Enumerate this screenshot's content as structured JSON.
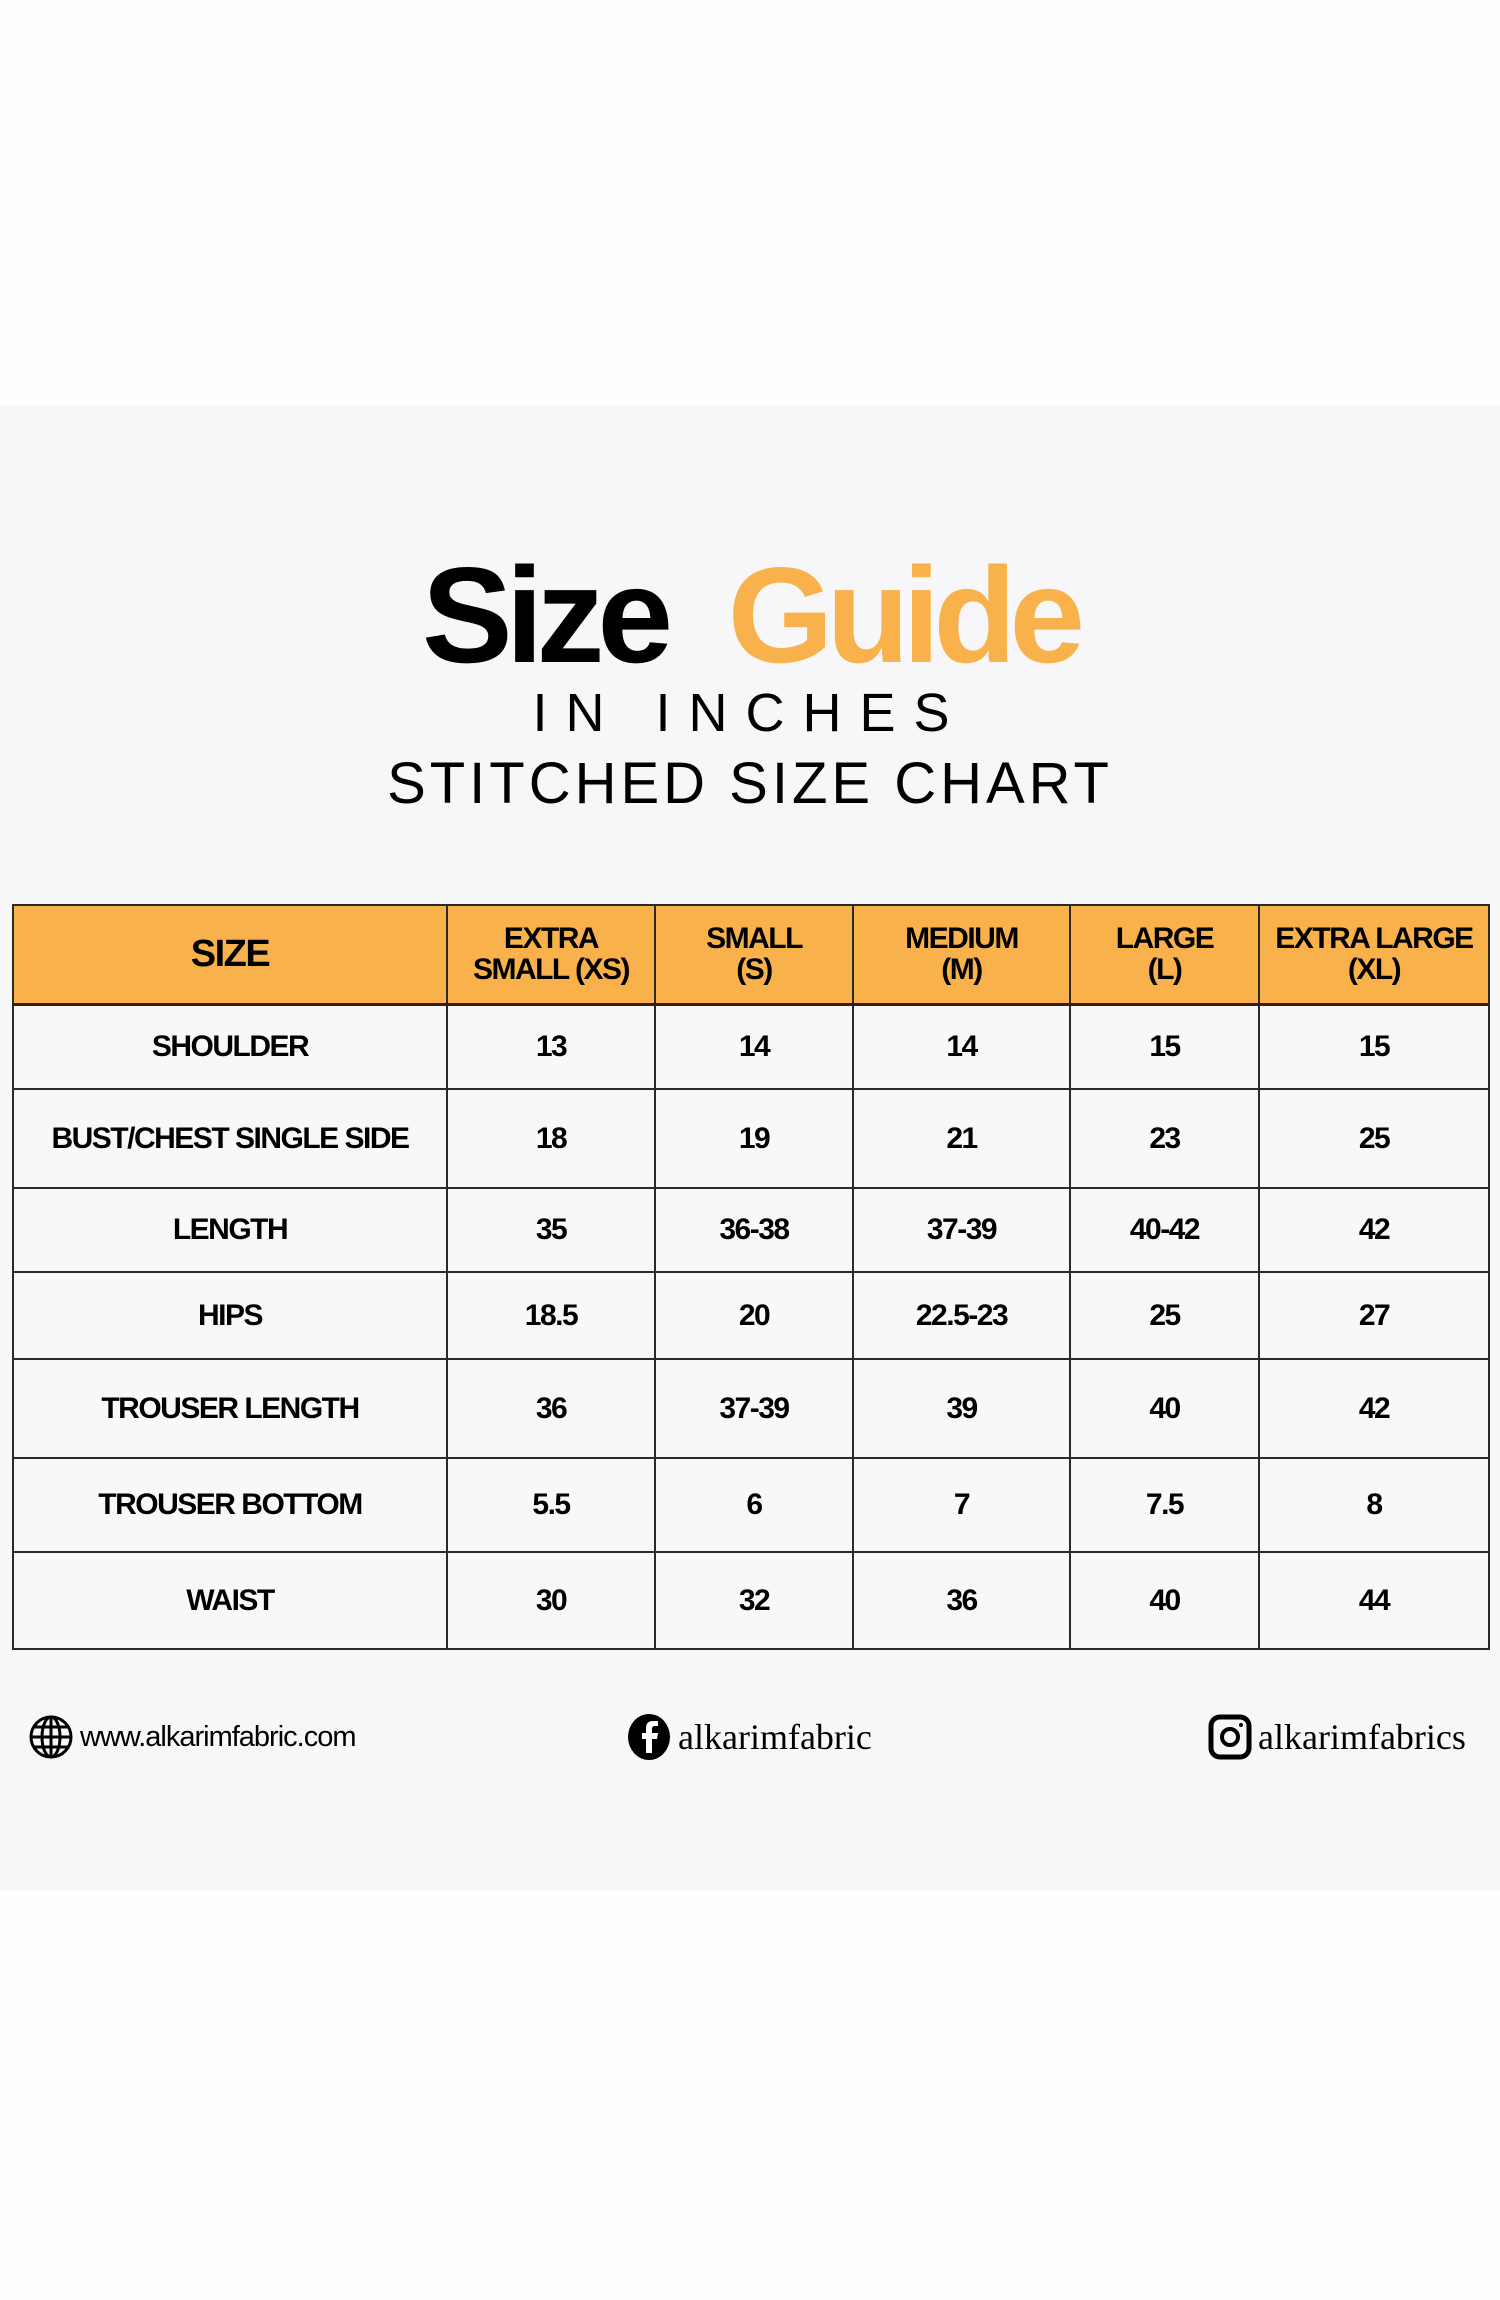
{
  "colors": {
    "accent": "#f9b24b",
    "panel": "#f7f7f9",
    "text": "#000000"
  },
  "header": {
    "title_part1": "Size",
    "title_part2": "Guide",
    "subtitle": "IN INCHES",
    "chart_title": "STITCHED SIZE CHART"
  },
  "table": {
    "columns": [
      "SIZE",
      [
        "EXTRA",
        "SMALL (XS)"
      ],
      [
        "SMALL",
        "(S)"
      ],
      [
        "MEDIUM",
        "(M)"
      ],
      [
        "LARGE",
        "(L)"
      ],
      [
        "EXTRA LARGE",
        "(XL)"
      ]
    ],
    "rows": [
      [
        "SHOULDER",
        "13",
        "14",
        "14",
        "15",
        "15"
      ],
      [
        "BUST/CHEST SINGLE SIDE",
        "18",
        "19",
        "21",
        "23",
        "25"
      ],
      [
        "LENGTH",
        "35",
        "36-38",
        "37-39",
        "40-42",
        "42"
      ],
      [
        "HIPS",
        "18.5",
        "20",
        "22.5-23",
        "25",
        "27"
      ],
      [
        "TROUSER LENGTH",
        "36",
        "37-39",
        "39",
        "40",
        "42"
      ],
      [
        "TROUSER BOTTOM",
        "5.5",
        "6",
        "7",
        "7.5",
        "8"
      ],
      [
        "WAIST",
        "30",
        "32",
        "36",
        "40",
        "44"
      ]
    ]
  },
  "footer": {
    "website": {
      "icon": "globe-icon",
      "label": "www.alkarimfabric.com"
    },
    "facebook": {
      "icon": "facebook-icon",
      "label": "alkarimfabric"
    },
    "instagram": {
      "icon": "instagram-icon",
      "label": "alkarimfabrics"
    }
  }
}
